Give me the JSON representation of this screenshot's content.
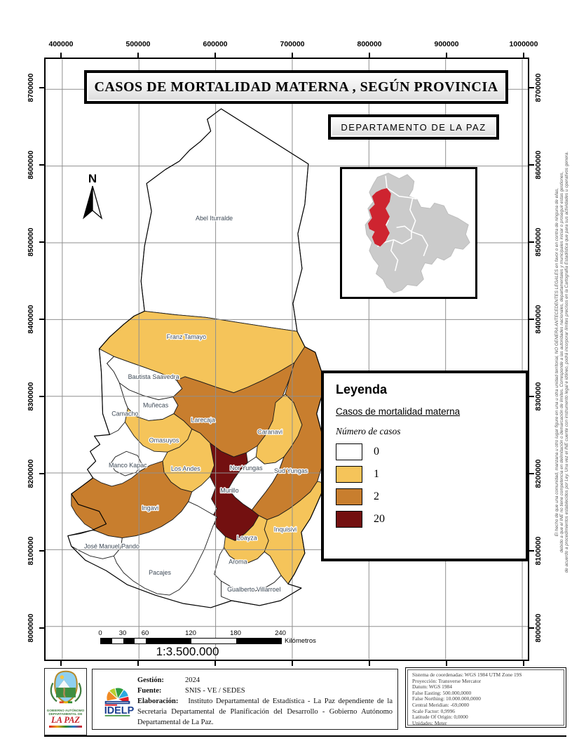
{
  "title": "CASOS DE MORTALIDAD MATERNA , SEGÚN PROVINCIA",
  "subtitle": "DEPARTAMENTO DE LA PAZ",
  "north_label": "N",
  "axes": {
    "x_labels": [
      "400000",
      "500000",
      "600000",
      "700000",
      "800000",
      "900000",
      "1000000"
    ],
    "y_labels": [
      "8700000",
      "8600000",
      "8500000",
      "8400000",
      "8300000",
      "8200000",
      "8100000",
      "8000000"
    ]
  },
  "legend": {
    "title": "Leyenda",
    "layer_title": "Casos de mortalidad materna",
    "field_label": "Número de casos",
    "classes": [
      {
        "label": "0",
        "color": "#FFFFFF"
      },
      {
        "label": "1",
        "color": "#F5C45A"
      },
      {
        "label": "2",
        "color": "#C87E2E"
      },
      {
        "label": "20",
        "color": "#731010"
      }
    ]
  },
  "map": {
    "grid_color": "#8F8F8F",
    "label_color": "#3E4A57",
    "provinces": [
      {
        "id": "abel-iturralde",
        "name": "Abel Iturralde",
        "cases": 0
      },
      {
        "id": "franz-tamayo",
        "name": "Franz Tamayo",
        "cases": 1
      },
      {
        "id": "bautista-saavedra",
        "name": "Bautista Saavedra",
        "cases": 0
      },
      {
        "id": "camacho",
        "name": "Camacho",
        "cases": 0
      },
      {
        "id": "munecas",
        "name": "Muñecas",
        "cases": 0
      },
      {
        "id": "omasuyos",
        "name": "Omasuyos",
        "cases": 1
      },
      {
        "id": "larecaja",
        "name": "Larecaja",
        "cases": 2
      },
      {
        "id": "sud-yungas",
        "name": "Sud Yungas",
        "cases": 2
      },
      {
        "id": "caranavi",
        "name": "Caranavi",
        "cases": 1
      },
      {
        "id": "nor-yungas",
        "name": "Nor Yungas",
        "cases": 0
      },
      {
        "id": "murillo",
        "name": "Murillo",
        "cases": 20
      },
      {
        "id": "los-andes",
        "name": "Los Andes",
        "cases": 1
      },
      {
        "id": "manco-kapac",
        "name": "Manco Kapac",
        "cases": 0
      },
      {
        "id": "ingavi",
        "name": "Ingavi",
        "cases": 2
      },
      {
        "id": "jose-manuel-pando",
        "name": "José Manuel Pando",
        "cases": 0
      },
      {
        "id": "pacajes",
        "name": "Pacajes",
        "cases": 0
      },
      {
        "id": "loayza",
        "name": "Loayza",
        "cases": 1
      },
      {
        "id": "inquisivi",
        "name": "Inquisivi",
        "cases": 1
      },
      {
        "id": "aroma",
        "name": "Aroma",
        "cases": 0
      },
      {
        "id": "gualberto-villarroel",
        "name": "Gualberto Villarroel",
        "cases": 0
      }
    ]
  },
  "inset": {
    "country_fill": "#CBCBCB",
    "country_border": "#BDBDBD",
    "highlight_fill": "#CE2430",
    "internal_border": "#FFFFFF"
  },
  "scale_bar": {
    "ticks": [
      "0",
      "30",
      "60",
      "120",
      "180",
      "240"
    ],
    "units": "Kilómetros",
    "ratio": "1:3.500.000"
  },
  "credits": {
    "rows": [
      {
        "label": "Gestión:",
        "value": "2024"
      },
      {
        "label": "Fuente:",
        "value": "SNIS - VE / SEDES"
      }
    ],
    "elaboracion_label": "Elaboración:",
    "elaboracion_value": "Instituto Departamental de Estadística - La Paz dependiente de la Secretaria Departamental de Planificación del Desarrollo - Gobierno Autónomo Departamental de La Paz."
  },
  "logos": {
    "gobierno_line1": "GOBIERNO AUTÓNOMO",
    "gobierno_line2": "DEPARTAMENTAL DE",
    "gobierno_line3": "LA PAZ",
    "idelp": "IDELP"
  },
  "coordinate_system": {
    "lines": [
      "Sistema de coordenadas: WGS 1984 UTM Zone 19S",
      "Proyección: Transverse Mercator",
      "Datum: WGS 1984",
      "False Easting: 500.000,0000",
      "False Northing: 10.000.000,0000",
      "Central Meridian: -69,0000",
      "Scale Factor: 0,9996",
      "Latitude Of Origin: 0,0000",
      "Unidades: Meter"
    ]
  },
  "disclaimer_lines": [
    "El hecho de que una comunidad, manzana u otro lugar figure en una u otra unidad territorial, NO GENERA ANTECEDENTES LEGALES en favor o en contra de ninguna de ellas,",
    "debido a que el INE no tiene competencia en delimitación o demarcación de límites. Corresponde a las autoridades nacionales, departamentales y municipales iniciar o proseguir estas gestiones,",
    "de acuerdo a procedimientos establecidos por Ley. Una vez el INE cuente con instrumento legal e idóneo, podrá incorporar límites precisos en la Cartografía Estadística que para sus actividades u operativos genera."
  ]
}
